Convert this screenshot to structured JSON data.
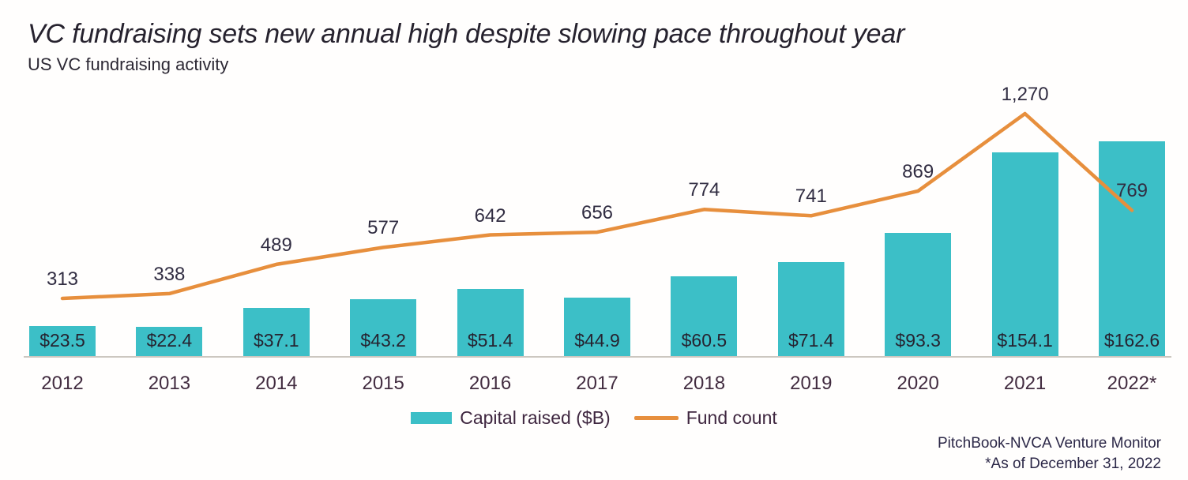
{
  "header": {
    "title": "VC fundraising sets new annual high despite slowing pace throughout year",
    "subtitle": "US VC fundraising activity"
  },
  "chart_data": {
    "type": "bar",
    "subtype": "bar-line-combo",
    "title": "US VC fundraising activity",
    "categories": [
      "2012",
      "2013",
      "2014",
      "2015",
      "2016",
      "2017",
      "2018",
      "2019",
      "2020",
      "2021",
      "2022*"
    ],
    "series": [
      {
        "name": "Capital raised ($B)",
        "type": "bar",
        "color": "#3cbfc7",
        "values": [
          23.5,
          22.4,
          37.1,
          43.2,
          51.4,
          44.9,
          60.5,
          71.4,
          93.3,
          154.1,
          162.6
        ],
        "labels": [
          "$23.5",
          "$22.4",
          "$37.1",
          "$43.2",
          "$51.4",
          "$44.9",
          "$60.5",
          "$71.4",
          "$93.3",
          "$154.1",
          "$162.6"
        ]
      },
      {
        "name": "Fund count",
        "type": "line",
        "color": "#e78f3d",
        "values": [
          313,
          338,
          489,
          577,
          642,
          656,
          774,
          741,
          869,
          1270,
          769
        ],
        "labels": [
          "313",
          "338",
          "489",
          "577",
          "642",
          "656",
          "774",
          "741",
          "869",
          "1,270",
          "769"
        ]
      }
    ],
    "xlabel": "",
    "ylabel": "",
    "grid": false,
    "legend_position": "bottom",
    "value_labels": "bars: inside near bottom; line: above points"
  },
  "legend": {
    "items": [
      {
        "label": "Capital raised ($B)",
        "color": "#3cbfc7",
        "shape": "swatch"
      },
      {
        "label": "Fund count",
        "color": "#e78f3d",
        "shape": "line"
      }
    ]
  },
  "source": {
    "line1": "PitchBook-NVCA Venture Monitor",
    "line2": "*As of December 31, 2022"
  },
  "colors": {
    "bar": "#3cbfc7",
    "line": "#e78f3d",
    "ink": "#262330",
    "axis": "#ccc7c0"
  }
}
